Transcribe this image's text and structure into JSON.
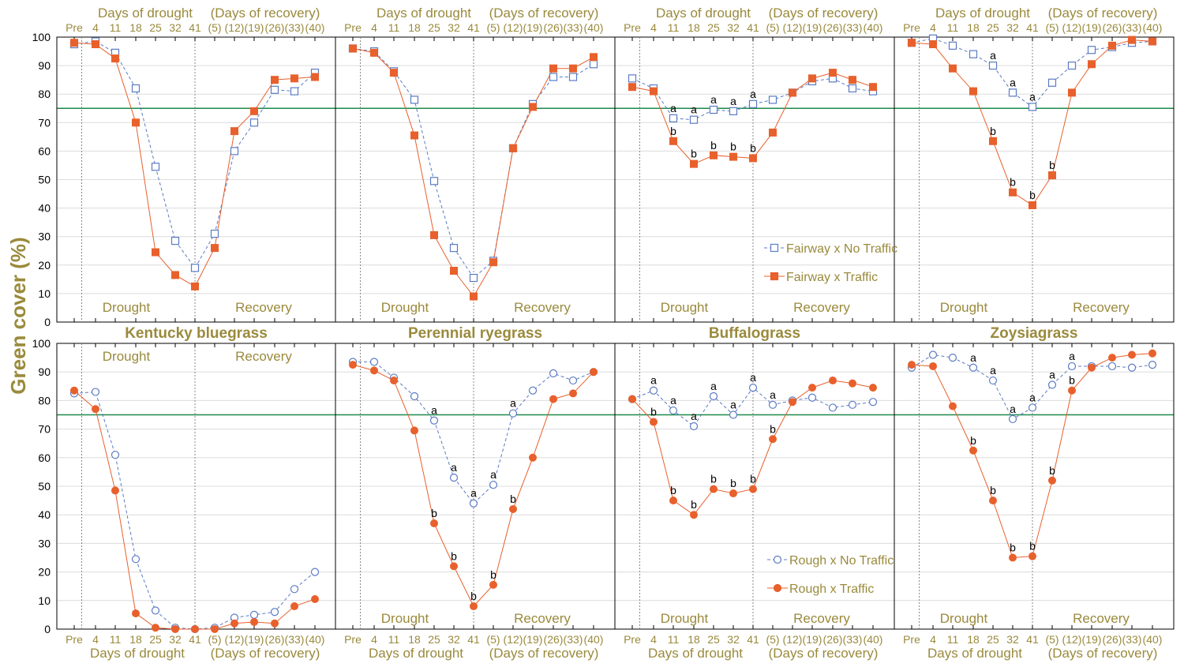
{
  "y_axis_label": "Green cover (%)",
  "axis_titles": {
    "drought": "Days of drought",
    "recovery": "(Days of recovery)"
  },
  "phase_labels": {
    "drought": "Drought",
    "recovery": "Recovery"
  },
  "x_ticks": [
    "Pre",
    "4",
    "11",
    "18",
    "25",
    "32",
    "41",
    "(5)",
    "(12)",
    "(19)",
    "(26)",
    "(33)",
    "(40)"
  ],
  "y_ticks": [
    0,
    10,
    20,
    30,
    40,
    50,
    60,
    70,
    80,
    90,
    100
  ],
  "colors": {
    "label_gold": "#9a8a3c",
    "no_traffic": "#5b7bc4",
    "traffic": "#e8602c",
    "threshold": "#1e8a4a",
    "grid": "#dcdcdc"
  },
  "legends": {
    "fairway": {
      "no_traffic": "Fairway x No Traffic",
      "traffic": "Fairway x Traffic"
    },
    "rough": {
      "no_traffic": "Rough x No Traffic",
      "traffic": "Rough x Traffic"
    }
  },
  "chart_data": {
    "type": "line",
    "ylabel": "Green cover (%)",
    "ylim": [
      0,
      100
    ],
    "threshold_line": 75,
    "categories": [
      "Pre",
      "4",
      "11",
      "18",
      "25",
      "32",
      "41",
      "(5)",
      "(12)",
      "(19)",
      "(26)",
      "(33)",
      "(40)"
    ],
    "panels": [
      {
        "row": "fairway",
        "species": "Kentucky bluegrass",
        "no_traffic": [
          97.5,
          98.5,
          94.5,
          82,
          54.5,
          28.5,
          19,
          31,
          60,
          70,
          81.5,
          81,
          87.5
        ],
        "traffic": [
          98,
          97.5,
          92.5,
          70,
          24.5,
          16.5,
          12.5,
          26,
          67,
          74,
          85,
          85.5,
          86
        ],
        "letters": []
      },
      {
        "row": "fairway",
        "species": "Perennial ryegrass",
        "no_traffic": [
          96,
          95,
          88,
          78,
          49.5,
          26,
          15.5,
          21.5,
          61,
          76.5,
          86,
          86,
          90.5
        ],
        "traffic": [
          96,
          94.5,
          87.5,
          65.5,
          30.5,
          18,
          9,
          21,
          61,
          75.5,
          89,
          89,
          93
        ],
        "letters": []
      },
      {
        "row": "fairway",
        "species": "Buffalograss",
        "no_traffic": [
          85.5,
          82,
          71.5,
          71,
          74.5,
          74,
          76.5,
          78,
          80.5,
          84.5,
          85.5,
          82,
          81
        ],
        "traffic": [
          82.5,
          81,
          63.5,
          55.5,
          58.5,
          58,
          57.5,
          66.5,
          80.5,
          85.5,
          87.5,
          85,
          82.5
        ],
        "letters": [
          {
            "index": 2,
            "no_traffic": "a",
            "traffic": "b"
          },
          {
            "index": 3,
            "no_traffic": "a",
            "traffic": "b"
          },
          {
            "index": 4,
            "no_traffic": "a",
            "traffic": "b"
          },
          {
            "index": 5,
            "no_traffic": "a",
            "traffic": "b"
          },
          {
            "index": 6,
            "no_traffic": "a",
            "traffic": "b"
          }
        ]
      },
      {
        "row": "fairway",
        "species": "Zoysiagrass",
        "no_traffic": [
          98,
          99.5,
          97,
          94,
          90,
          80.5,
          75.5,
          84,
          90,
          95.5,
          96.5,
          98,
          98.5
        ],
        "traffic": [
          98,
          97.5,
          89,
          81,
          63.5,
          45.5,
          41,
          51.5,
          80.5,
          90.5,
          97,
          99,
          98.5
        ],
        "letters": [
          {
            "index": 4,
            "no_traffic": "a",
            "traffic": "b"
          },
          {
            "index": 5,
            "no_traffic": "a",
            "traffic": "b"
          },
          {
            "index": 6,
            "no_traffic": "a",
            "traffic": "b"
          },
          {
            "index": 7,
            "no_traffic": "",
            "traffic": "b"
          }
        ]
      },
      {
        "row": "rough",
        "species": "Kentucky bluegrass",
        "no_traffic": [
          82.5,
          83,
          61,
          24.5,
          6.5,
          0.5,
          0,
          0.5,
          4,
          5,
          6,
          14,
          20
        ],
        "traffic": [
          83.5,
          77,
          48.5,
          5.5,
          0.5,
          0,
          0,
          0,
          2,
          2.5,
          2,
          8,
          10.5
        ],
        "letters": []
      },
      {
        "row": "rough",
        "species": "Perennial ryegrass",
        "no_traffic": [
          93.5,
          93.5,
          88,
          81.5,
          73,
          53,
          44,
          50.5,
          75.5,
          83.5,
          89.5,
          87,
          90
        ],
        "traffic": [
          92.5,
          90.5,
          87,
          69.5,
          37,
          22,
          8,
          15.5,
          42,
          60,
          80.5,
          82.5,
          90
        ],
        "letters": [
          {
            "index": 4,
            "no_traffic": "a",
            "traffic": "b"
          },
          {
            "index": 5,
            "no_traffic": "a",
            "traffic": "b"
          },
          {
            "index": 6,
            "no_traffic": "a",
            "traffic": "b"
          },
          {
            "index": 7,
            "no_traffic": "a",
            "traffic": "b"
          },
          {
            "index": 8,
            "no_traffic": "a",
            "traffic": "b"
          }
        ]
      },
      {
        "row": "rough",
        "species": "Buffalograss",
        "no_traffic": [
          80.5,
          83.5,
          76.5,
          71,
          81.5,
          75,
          84.5,
          78.5,
          80,
          81,
          77.5,
          78.5,
          79.5
        ],
        "traffic": [
          80.5,
          72.5,
          45,
          40,
          49,
          47.5,
          49,
          66.5,
          79.5,
          84.5,
          87,
          86,
          84.5
        ],
        "letters": [
          {
            "index": 1,
            "no_traffic": "a",
            "traffic": "b"
          },
          {
            "index": 2,
            "no_traffic": "a",
            "traffic": "b"
          },
          {
            "index": 3,
            "no_traffic": "a",
            "traffic": "b"
          },
          {
            "index": 4,
            "no_traffic": "a",
            "traffic": "b"
          },
          {
            "index": 5,
            "no_traffic": "a",
            "traffic": "b"
          },
          {
            "index": 6,
            "no_traffic": "a",
            "traffic": "b"
          },
          {
            "index": 7,
            "no_traffic": "a",
            "traffic": "b"
          }
        ]
      },
      {
        "row": "rough",
        "species": "Zoysiagrass",
        "no_traffic": [
          91.5,
          96,
          95,
          91.5,
          87,
          73.5,
          77.5,
          85.5,
          92,
          92,
          92,
          91.5,
          92.5
        ],
        "traffic": [
          92.5,
          92,
          78,
          62.5,
          45,
          25,
          25.5,
          52,
          83.5,
          91.5,
          95,
          96,
          96.5
        ],
        "letters": [
          {
            "index": 3,
            "no_traffic": "a",
            "traffic": "b"
          },
          {
            "index": 4,
            "no_traffic": "a",
            "traffic": "b"
          },
          {
            "index": 5,
            "no_traffic": "a",
            "traffic": "b"
          },
          {
            "index": 6,
            "no_traffic": "a",
            "traffic": "b"
          },
          {
            "index": 7,
            "no_traffic": "a",
            "traffic": "b"
          },
          {
            "index": 8,
            "no_traffic": "a",
            "traffic": "b"
          }
        ]
      }
    ]
  }
}
